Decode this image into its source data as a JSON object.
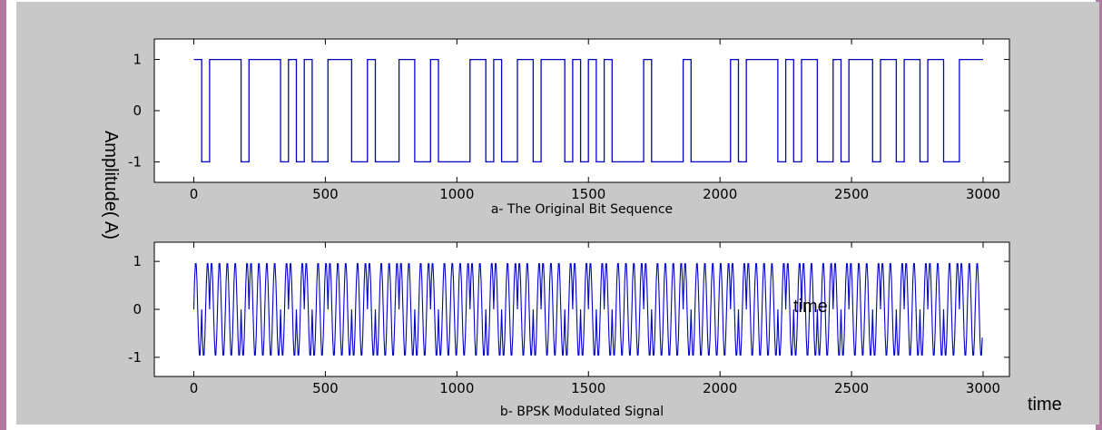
{
  "figure": {
    "ylabel": "Amplitude( A)",
    "outside_xlabel": "time",
    "inside_annotation": "time",
    "colors": {
      "figure_bg": "#c8c8c8",
      "frame": "#b07aa1",
      "signal": "#0000cc",
      "axes_bg": "#ffffff"
    }
  },
  "chart_data": [
    {
      "type": "line",
      "xlabel": "a- The Original Bit Sequence",
      "xlim": [
        -150,
        3100
      ],
      "ylim": [
        -1.4,
        1.4
      ],
      "xticks": [
        0,
        500,
        1000,
        1500,
        2000,
        2500,
        3000
      ],
      "yticks": [
        -1,
        0,
        1
      ],
      "series": [
        {
          "description": "random binary NRZ sequence, values +1/-1, 3000 samples",
          "values_domain": [
            -1,
            1
          ],
          "n_samples": 3000
        }
      ]
    },
    {
      "type": "line",
      "xlabel": "b- BPSK Modulated Signal",
      "xlim": [
        -150,
        3100
      ],
      "ylim": [
        -1.4,
        1.4
      ],
      "xticks": [
        0,
        500,
        1000,
        1500,
        2000,
        2500,
        3000
      ],
      "yticks": [
        -1,
        0,
        1
      ],
      "series": [
        {
          "description": "BPSK modulated carrier, amplitude 1, phase flips with bits, 3000 samples",
          "values_domain": [
            -1,
            1
          ],
          "n_samples": 3000
        }
      ]
    }
  ]
}
